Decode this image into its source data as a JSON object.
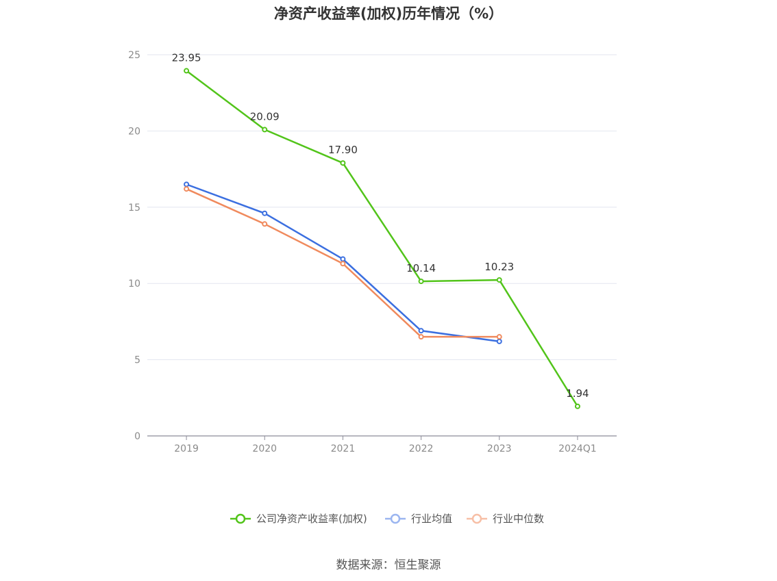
{
  "chart_data": {
    "type": "line",
    "title": "净资产收益率(加权)历年情况（%）",
    "categories": [
      "2019",
      "2020",
      "2021",
      "2022",
      "2023",
      "2024Q1"
    ],
    "ylim": [
      0,
      25
    ],
    "yticks": [
      0,
      5,
      10,
      15,
      20,
      25
    ],
    "grid": true,
    "legend_position": "bottom",
    "series": [
      {
        "name": "公司净资产收益率(加权)",
        "values": [
          23.95,
          20.09,
          17.9,
          10.14,
          10.23,
          1.94
        ],
        "labels": [
          "23.95",
          "20.09",
          "17.90",
          "10.14",
          "10.23",
          "1.94"
        ],
        "color": "#52c41a"
      },
      {
        "name": "行业均值",
        "values": [
          16.5,
          14.6,
          11.6,
          6.9,
          6.2,
          null
        ],
        "color": "#3b6fe0",
        "legend_color": "#9bb5f0"
      },
      {
        "name": "行业中位数",
        "values": [
          16.2,
          13.9,
          11.3,
          6.5,
          6.5,
          null
        ],
        "color": "#f08a5d",
        "legend_color": "#f7bfa6"
      }
    ]
  },
  "source": "数据来源：恒生聚源"
}
